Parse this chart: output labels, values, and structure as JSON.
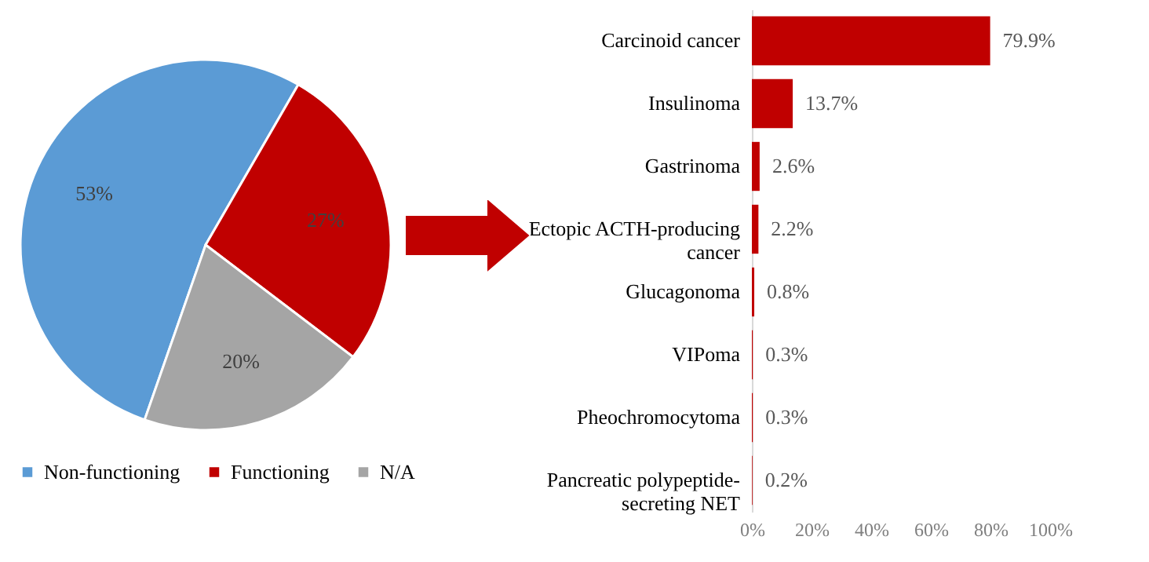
{
  "chart_data": [
    {
      "type": "pie",
      "categories": [
        "Non-functioning",
        "Functioning",
        "N/A"
      ],
      "values": [
        53,
        27,
        20
      ],
      "colors": [
        "#5b9bd5",
        "#c00000",
        "#a5a5a5"
      ],
      "value_labels": [
        "53%",
        "27%",
        "20%"
      ],
      "legend": "bottom"
    },
    {
      "type": "bar",
      "orientation": "horizontal",
      "categories": [
        "Carcinoid cancer",
        "Insulinoma",
        "Gastrinoma",
        "Ectopic ACTH-producing cancer",
        "Glucagonoma",
        "VIPoma",
        "Pheochromocytoma",
        "Pancreatic polypeptide-secreting NET"
      ],
      "values": [
        79.9,
        13.7,
        2.6,
        2.2,
        0.8,
        0.3,
        0.3,
        0.2
      ],
      "color": "#c00000",
      "value_labels": [
        "79.9%",
        "13.7%",
        "2.6%",
        "2.2%",
        "0.8%",
        "0.3%",
        "0.3%",
        "0.2%"
      ],
      "xlim": [
        0,
        100
      ],
      "xticks": [
        {
          "value": 0,
          "label": "0%"
        },
        {
          "value": 20,
          "label": "20%"
        },
        {
          "value": 40,
          "label": "40%"
        },
        {
          "value": 60,
          "label": "60%"
        },
        {
          "value": 80,
          "label": "80%"
        },
        {
          "value": 100,
          "label": "100%"
        }
      ]
    }
  ]
}
